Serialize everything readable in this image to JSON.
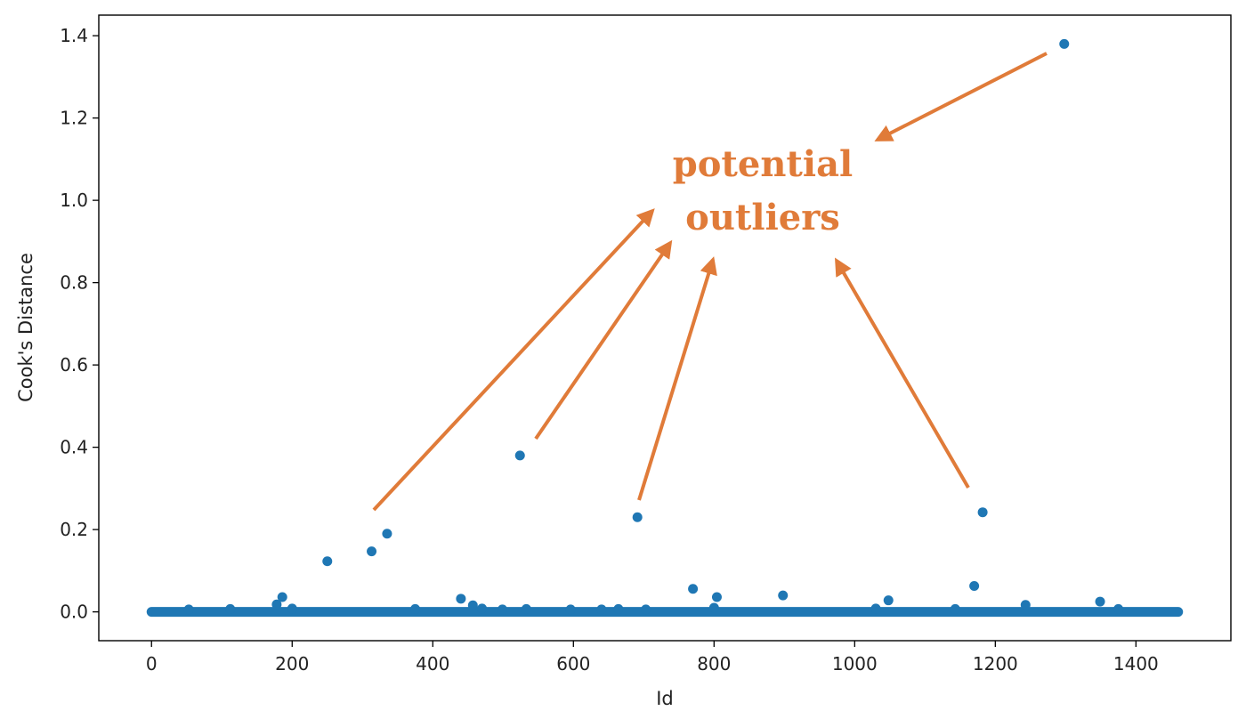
{
  "chart_data": {
    "type": "scatter",
    "xlabel": "Id",
    "ylabel": "Cook's Distance",
    "xlim": [
      -75,
      1535
    ],
    "ylim": [
      -0.07,
      1.45
    ],
    "x_ticks": [
      0,
      200,
      400,
      600,
      800,
      1000,
      1200,
      1400
    ],
    "y_ticks": [
      0.0,
      0.2,
      0.4,
      0.6,
      0.8,
      1.0,
      1.2,
      1.4
    ],
    "x_tick_labels": [
      "0",
      "200",
      "400",
      "600",
      "800",
      "1000",
      "1200",
      "1400"
    ],
    "y_tick_labels": [
      "0.0",
      "0.2",
      "0.4",
      "0.6",
      "0.8",
      "1.0",
      "1.2",
      "1.4"
    ],
    "grid": false,
    "series": [
      {
        "color": "#1f77b4",
        "baseline": {
          "x_range": [
            0,
            1460
          ],
          "y": 0.0
        },
        "points": [
          {
            "x": 53,
            "y": 0.006
          },
          {
            "x": 112,
            "y": 0.007
          },
          {
            "x": 178,
            "y": 0.018
          },
          {
            "x": 186,
            "y": 0.036
          },
          {
            "x": 200,
            "y": 0.008
          },
          {
            "x": 250,
            "y": 0.123
          },
          {
            "x": 313,
            "y": 0.147
          },
          {
            "x": 335,
            "y": 0.19
          },
          {
            "x": 375,
            "y": 0.007
          },
          {
            "x": 440,
            "y": 0.032
          },
          {
            "x": 457,
            "y": 0.016
          },
          {
            "x": 470,
            "y": 0.008
          },
          {
            "x": 499,
            "y": 0.006
          },
          {
            "x": 524,
            "y": 0.38
          },
          {
            "x": 533,
            "y": 0.007
          },
          {
            "x": 596,
            "y": 0.006
          },
          {
            "x": 640,
            "y": 0.006
          },
          {
            "x": 664,
            "y": 0.007
          },
          {
            "x": 691,
            "y": 0.23
          },
          {
            "x": 703,
            "y": 0.006
          },
          {
            "x": 770,
            "y": 0.056
          },
          {
            "x": 804,
            "y": 0.036
          },
          {
            "x": 800,
            "y": 0.01
          },
          {
            "x": 898,
            "y": 0.04
          },
          {
            "x": 1030,
            "y": 0.008
          },
          {
            "x": 1048,
            "y": 0.028
          },
          {
            "x": 1143,
            "y": 0.007
          },
          {
            "x": 1170,
            "y": 0.063
          },
          {
            "x": 1182,
            "y": 0.242
          },
          {
            "x": 1243,
            "y": 0.017
          },
          {
            "x": 1298,
            "y": 1.38
          },
          {
            "x": 1349,
            "y": 0.025
          },
          {
            "x": 1375,
            "y": 0.007
          }
        ]
      }
    ],
    "annotation": {
      "lines": [
        "potential",
        "outliers"
      ],
      "color": "#e07b39"
    }
  }
}
